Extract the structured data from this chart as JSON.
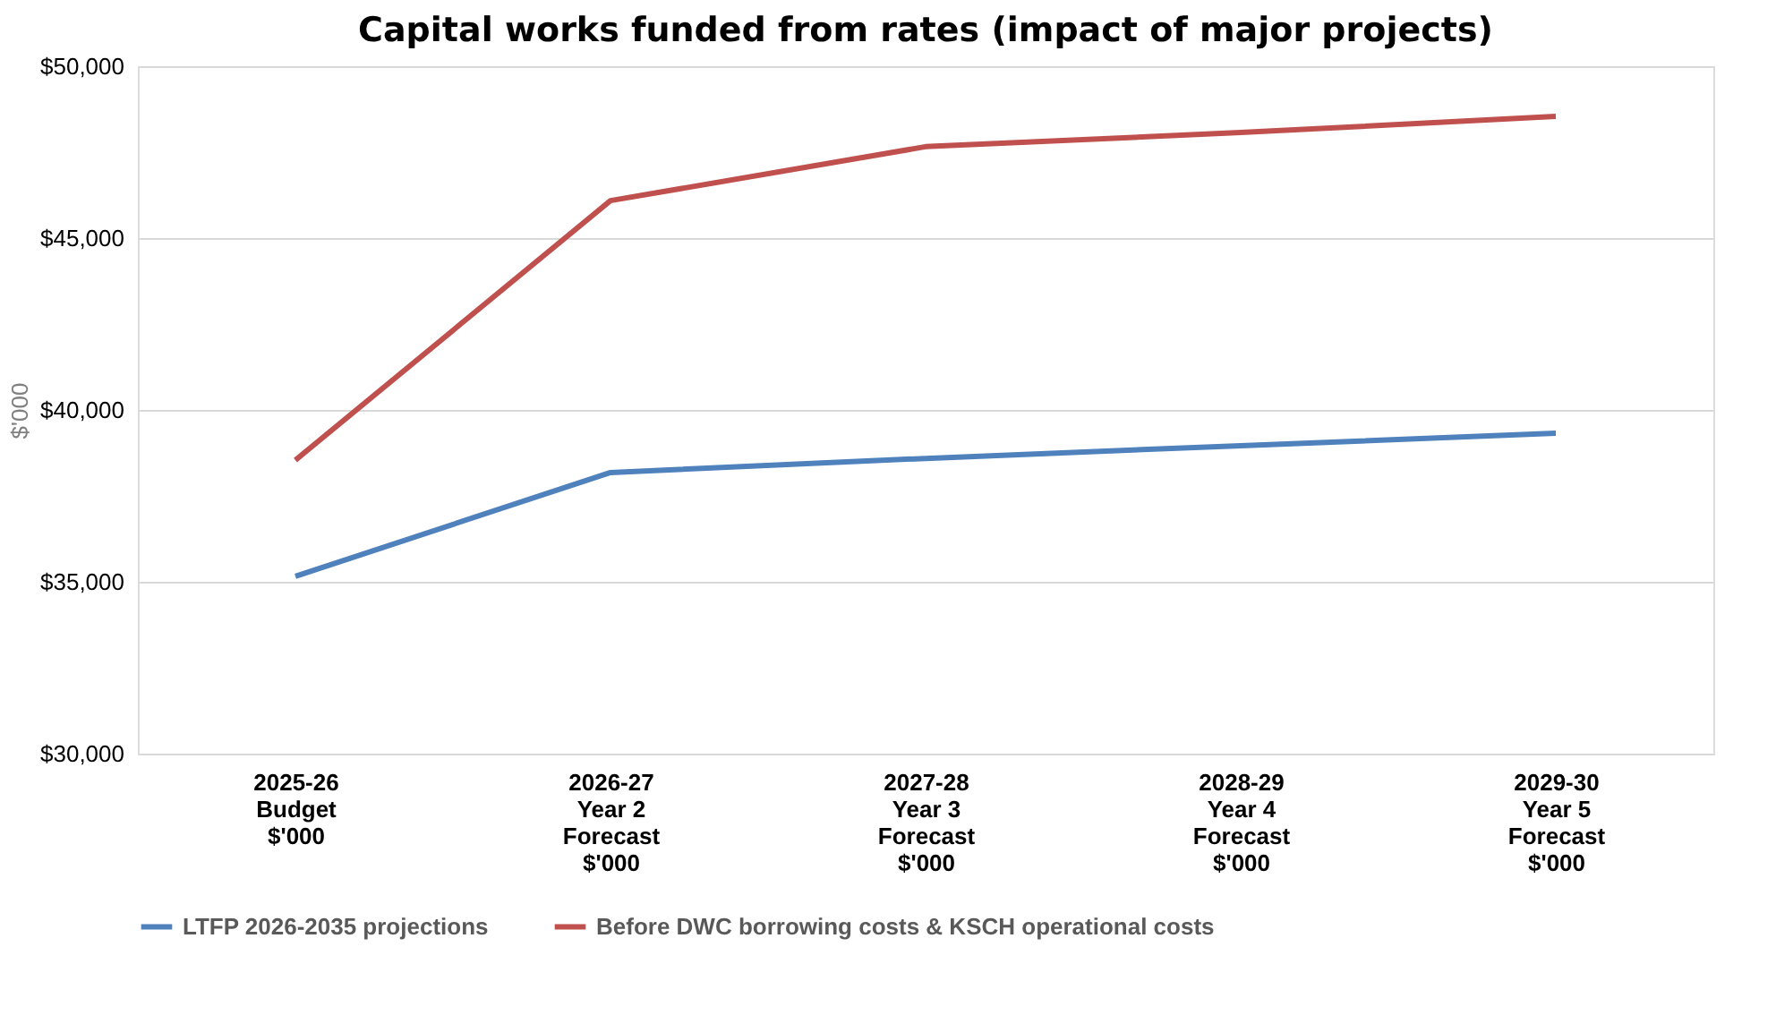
{
  "chart_data": {
    "type": "line",
    "title": "Capital works funded from rates (impact of major projects)",
    "ylabel": "$'000",
    "categories": [
      "2025-26\nBudget\n$'000",
      "2026-27\nYear 2\nForecast\n$'000",
      "2027-28\nYear 3\nForecast\n$'000",
      "2028-29\nYear 4\nForecast\n$'000",
      "2029-30\nYear 5\nForecast\n$'000"
    ],
    "series": [
      {
        "name": "LTFP 2026-2035 projections",
        "color": "#4f81bd",
        "values": [
          35160,
          38180,
          38590,
          38960,
          39320
        ]
      },
      {
        "name": "Before DWC borrowing costs & KSCH operational costs",
        "color": "#c0504d",
        "values": [
          38540,
          46090,
          47660,
          48070,
          48540
        ]
      }
    ],
    "ylim": [
      30000,
      50000
    ],
    "yticks": [
      {
        "value": 30000,
        "label": "$30,000"
      },
      {
        "value": 35000,
        "label": "$35,000"
      },
      {
        "value": 40000,
        "label": "$40,000"
      },
      {
        "value": 45000,
        "label": "$45,000"
      },
      {
        "value": 50000,
        "label": "$50,000"
      }
    ],
    "grid": "y",
    "legend": "bottom",
    "marker": "none",
    "line_style": "solid"
  }
}
